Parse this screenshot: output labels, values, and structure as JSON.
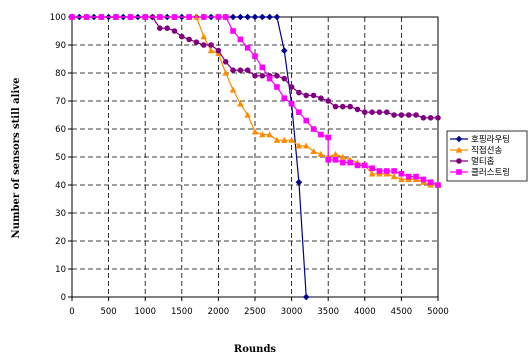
{
  "chart_data": {
    "type": "line",
    "title": "",
    "xlabel": "Rounds",
    "ylabel": "Number of sensors still alive",
    "xlim": [
      0,
      5000
    ],
    "ylim": [
      0,
      100
    ],
    "xticks": [
      0,
      500,
      1000,
      1500,
      2000,
      2500,
      3000,
      3500,
      4000,
      4500,
      5000
    ],
    "yticks": [
      0,
      10,
      20,
      30,
      40,
      50,
      60,
      70,
      80,
      90,
      100
    ],
    "grid": true,
    "legend_position": "right",
    "series": [
      {
        "name": "호핑라우팅",
        "color": "#00008b",
        "marker": "diamond",
        "points": [
          [
            0,
            100
          ],
          [
            100,
            100
          ],
          [
            200,
            100
          ],
          [
            300,
            100
          ],
          [
            400,
            100
          ],
          [
            500,
            100
          ],
          [
            600,
            100
          ],
          [
            700,
            100
          ],
          [
            800,
            100
          ],
          [
            900,
            100
          ],
          [
            1000,
            100
          ],
          [
            1100,
            100
          ],
          [
            1200,
            100
          ],
          [
            1300,
            100
          ],
          [
            1400,
            100
          ],
          [
            1500,
            100
          ],
          [
            1600,
            100
          ],
          [
            1700,
            100
          ],
          [
            1800,
            100
          ],
          [
            1900,
            100
          ],
          [
            2000,
            100
          ],
          [
            2100,
            100
          ],
          [
            2200,
            100
          ],
          [
            2300,
            100
          ],
          [
            2400,
            100
          ],
          [
            2500,
            100
          ],
          [
            2600,
            100
          ],
          [
            2700,
            100
          ],
          [
            2800,
            100
          ],
          [
            2900,
            88
          ],
          [
            3000,
            69
          ],
          [
            3100,
            41
          ],
          [
            3200,
            0
          ]
        ]
      },
      {
        "name": "직접선송",
        "color": "#ff8c00",
        "marker": "triangle",
        "points": [
          [
            0,
            100
          ],
          [
            200,
            100
          ],
          [
            400,
            100
          ],
          [
            600,
            100
          ],
          [
            800,
            100
          ],
          [
            1000,
            100
          ],
          [
            1200,
            100
          ],
          [
            1400,
            100
          ],
          [
            1600,
            100
          ],
          [
            1700,
            100
          ],
          [
            1800,
            93
          ],
          [
            1900,
            88
          ],
          [
            2000,
            87
          ],
          [
            2100,
            80
          ],
          [
            2200,
            74
          ],
          [
            2300,
            69
          ],
          [
            2400,
            65
          ],
          [
            2500,
            59
          ],
          [
            2600,
            58
          ],
          [
            2700,
            58
          ],
          [
            2800,
            56
          ],
          [
            2900,
            56
          ],
          [
            3000,
            56
          ],
          [
            3100,
            54
          ],
          [
            3200,
            54
          ],
          [
            3300,
            52
          ],
          [
            3400,
            51
          ],
          [
            3500,
            50
          ],
          [
            3600,
            51
          ],
          [
            3700,
            50
          ],
          [
            3800,
            49
          ],
          [
            3900,
            48
          ],
          [
            4000,
            47
          ],
          [
            4100,
            44
          ],
          [
            4200,
            44
          ],
          [
            4300,
            44
          ],
          [
            4400,
            43
          ],
          [
            4500,
            42
          ],
          [
            4600,
            42
          ],
          [
            4700,
            42
          ],
          [
            4800,
            41
          ],
          [
            4900,
            40
          ],
          [
            5000,
            40
          ]
        ]
      },
      {
        "name": "멀티홉",
        "color": "#800080",
        "marker": "circle",
        "points": [
          [
            0,
            100
          ],
          [
            200,
            100
          ],
          [
            400,
            100
          ],
          [
            600,
            100
          ],
          [
            800,
            100
          ],
          [
            1000,
            100
          ],
          [
            1100,
            100
          ],
          [
            1200,
            96
          ],
          [
            1300,
            96
          ],
          [
            1400,
            95
          ],
          [
            1500,
            93
          ],
          [
            1600,
            92
          ],
          [
            1700,
            91
          ],
          [
            1800,
            90
          ],
          [
            1900,
            90
          ],
          [
            2000,
            88
          ],
          [
            2100,
            84
          ],
          [
            2200,
            81
          ],
          [
            2300,
            81
          ],
          [
            2400,
            81
          ],
          [
            2500,
            79
          ],
          [
            2600,
            79
          ],
          [
            2700,
            79
          ],
          [
            2800,
            79
          ],
          [
            2900,
            78
          ],
          [
            3000,
            75
          ],
          [
            3100,
            73
          ],
          [
            3200,
            72
          ],
          [
            3300,
            72
          ],
          [
            3400,
            71
          ],
          [
            3500,
            70
          ],
          [
            3600,
            68
          ],
          [
            3700,
            68
          ],
          [
            3800,
            68
          ],
          [
            3900,
            67
          ],
          [
            4000,
            66
          ],
          [
            4100,
            66
          ],
          [
            4200,
            66
          ],
          [
            4300,
            66
          ],
          [
            4400,
            65
          ],
          [
            4500,
            65
          ],
          [
            4600,
            65
          ],
          [
            4700,
            65
          ],
          [
            4800,
            64
          ],
          [
            4900,
            64
          ],
          [
            5000,
            64
          ]
        ]
      },
      {
        "name": "클러스트링",
        "color": "#ff00ff",
        "marker": "square",
        "points": [
          [
            0,
            100
          ],
          [
            200,
            100
          ],
          [
            400,
            100
          ],
          [
            600,
            100
          ],
          [
            800,
            100
          ],
          [
            1000,
            100
          ],
          [
            1200,
            100
          ],
          [
            1400,
            100
          ],
          [
            1600,
            100
          ],
          [
            1800,
            100
          ],
          [
            2000,
            100
          ],
          [
            2100,
            100
          ],
          [
            2200,
            95
          ],
          [
            2300,
            92
          ],
          [
            2400,
            89
          ],
          [
            2500,
            86
          ],
          [
            2600,
            82
          ],
          [
            2700,
            78
          ],
          [
            2800,
            75
          ],
          [
            2900,
            71
          ],
          [
            3000,
            69
          ],
          [
            3100,
            66
          ],
          [
            3200,
            63
          ],
          [
            3300,
            60
          ],
          [
            3400,
            58
          ],
          [
            3500,
            57
          ],
          [
            3500,
            49
          ],
          [
            3600,
            49
          ],
          [
            3700,
            48
          ],
          [
            3800,
            48
          ],
          [
            3900,
            47
          ],
          [
            4000,
            47
          ],
          [
            4100,
            46
          ],
          [
            4200,
            45
          ],
          [
            4300,
            45
          ],
          [
            4400,
            45
          ],
          [
            4500,
            44
          ],
          [
            4600,
            43
          ],
          [
            4700,
            43
          ],
          [
            4800,
            42
          ],
          [
            4900,
            41
          ],
          [
            5000,
            40
          ]
        ]
      }
    ]
  }
}
